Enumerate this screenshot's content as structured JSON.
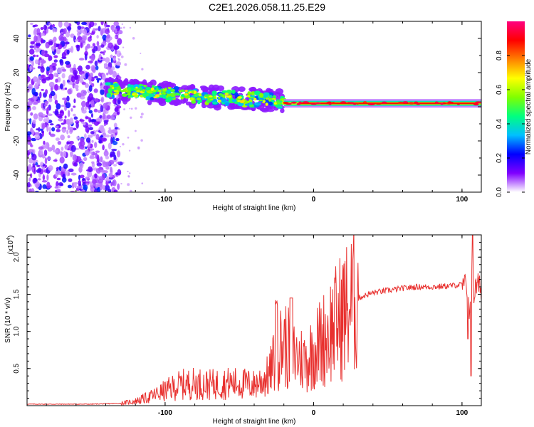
{
  "title": "C2E1.2026.058.11.25.E29",
  "chart_data": [
    {
      "type": "heatmap",
      "name": "spectrogram",
      "xlabel": "Height of straight line (km)",
      "ylabel": "Frequency (Hz)",
      "xlim": [
        -193,
        113
      ],
      "ylim": [
        -50,
        50
      ],
      "xticks": [
        -100,
        0,
        100
      ],
      "xtick_labels": [
        "-100",
        "0",
        "100"
      ],
      "yticks": [
        -40,
        -20,
        0,
        20,
        40
      ],
      "ytick_labels": [
        "-40",
        "-20",
        "0",
        "20",
        "40"
      ],
      "colorbar": {
        "label": "Normalized spectral amplitude",
        "range": [
          0,
          1
        ],
        "ticks": [
          0.0,
          0.2,
          0.4,
          0.6,
          0.8
        ],
        "tick_labels": [
          "0.0",
          "0.2",
          "0.4",
          "0.6",
          "0.8"
        ],
        "colors": [
          "#ffffff",
          "#8000ff",
          "#0000ff",
          "#00bfff",
          "#00ff80",
          "#80ff00",
          "#ffff00",
          "#ff8000",
          "#ff0000",
          "#ff0080"
        ]
      },
      "features": [
        {
          "description": "broadband noise",
          "x_range": [
            -193,
            -130
          ],
          "freq_range": [
            -50,
            50
          ],
          "amplitude": 0.15
        },
        {
          "description": "signal band",
          "x_range": [
            -140,
            -20
          ],
          "freq_center": [
            10,
            3
          ],
          "amplitude": 0.4
        },
        {
          "description": "narrow signal line",
          "x_range": [
            -20,
            113
          ],
          "freq": 2,
          "amplitude": 0.9
        }
      ]
    },
    {
      "type": "line",
      "name": "snr",
      "xlabel": "Height of straight line (km)",
      "ylabel": "SNR (10 * v/v)",
      "multiplier_label": "(x10",
      "multiplier_exponent": "4",
      "multiplier_close": ")",
      "xlim": [
        -193,
        113
      ],
      "ylim": [
        0,
        2.3
      ],
      "xticks": [
        -100,
        0,
        100
      ],
      "xtick_labels": [
        "-100",
        "0",
        "100"
      ],
      "yticks": [
        0.5,
        1.0,
        1.5,
        2.0
      ],
      "ytick_labels": [
        "0.5",
        "1.0",
        "1.5",
        "2.0"
      ],
      "color": "#e8302e",
      "series": [
        {
          "name": "SNR envelope",
          "x": [
            -193,
            -150,
            -130,
            -120,
            -110,
            -100,
            -90,
            -80,
            -70,
            -60,
            -50,
            -40,
            -30,
            -25,
            -20,
            -15,
            -10,
            -5,
            0,
            5,
            10,
            15,
            20,
            25,
            30,
            40,
            50,
            60,
            70,
            80,
            90,
            95,
            100,
            103,
            105,
            106,
            107,
            108,
            110,
            113
          ],
          "y": [
            0.02,
            0.02,
            0.03,
            0.06,
            0.12,
            0.2,
            0.28,
            0.3,
            0.28,
            0.3,
            0.3,
            0.28,
            0.4,
            0.7,
            0.85,
            0.7,
            0.65,
            0.6,
            0.75,
            0.85,
            1.0,
            1.1,
            1.25,
            1.35,
            1.45,
            1.52,
            1.55,
            1.58,
            1.6,
            1.6,
            1.61,
            1.62,
            1.63,
            1.6,
            1.3,
            1.6,
            1.9,
            1.5,
            1.62,
            1.6
          ]
        }
      ]
    }
  ]
}
